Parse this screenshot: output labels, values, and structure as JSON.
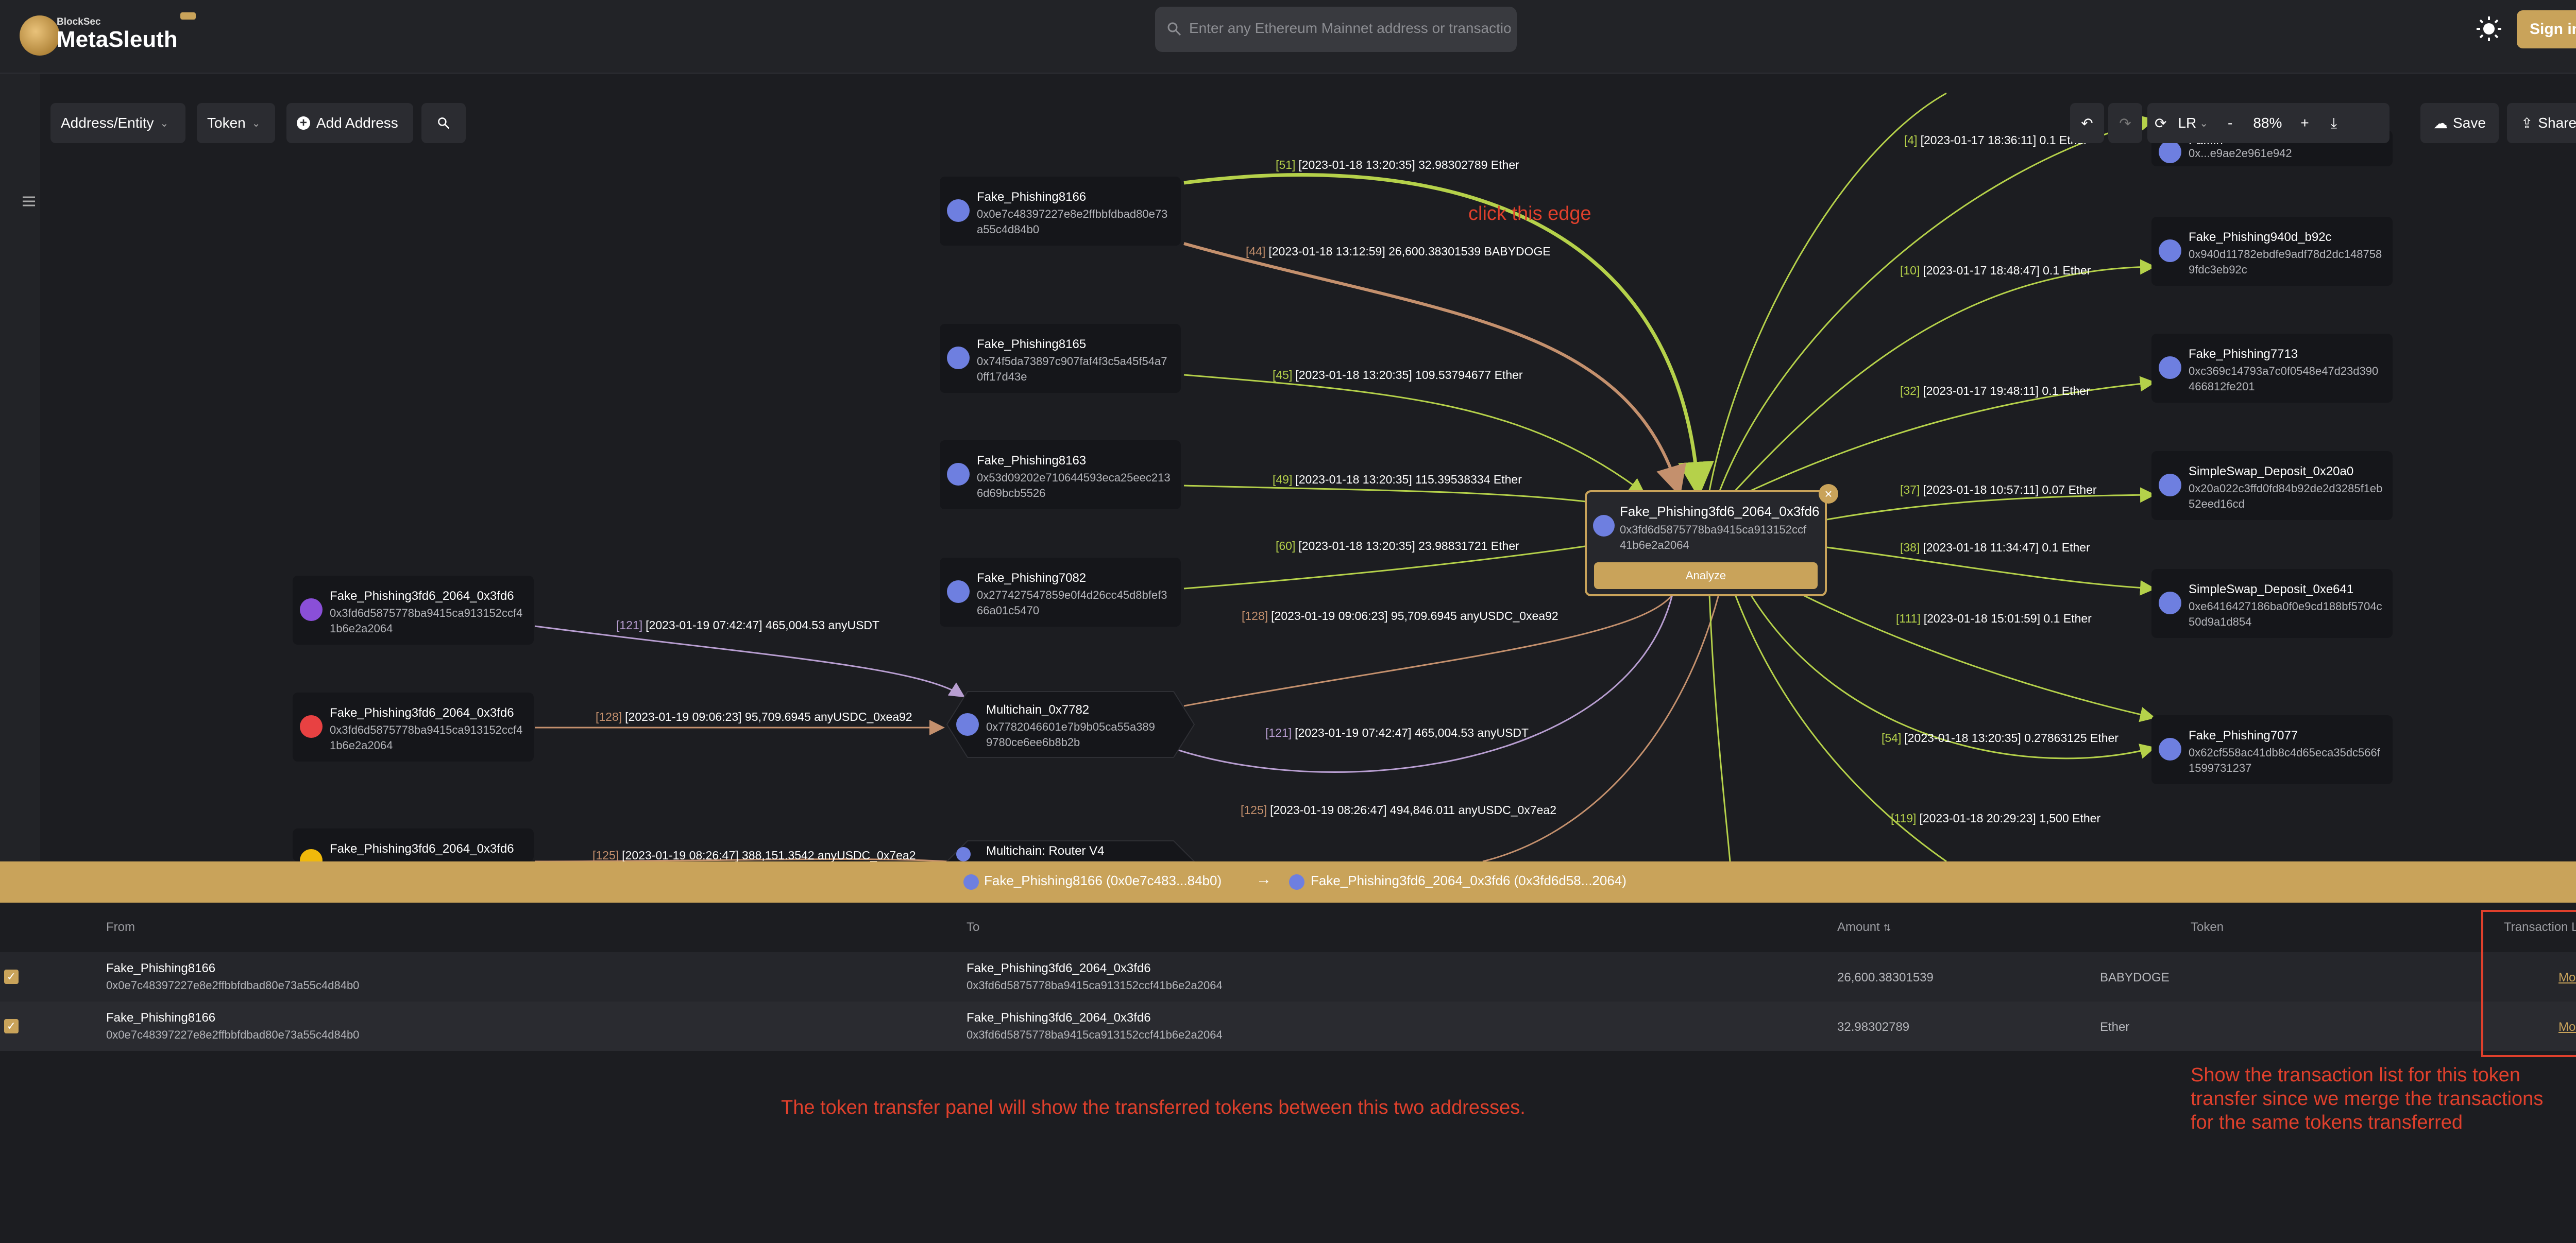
{
  "header": {
    "logo_sub": "BlockSec",
    "logo_main": "MetaSleuth",
    "search_placeholder": "Enter any Ethereum Mainnet address or transaction",
    "signin_label": "Sign in"
  },
  "toolbar": {
    "address_entity": "Address/Entity",
    "token": "Token",
    "add_address": "Add Address",
    "direction": "LR",
    "zoom": "88%",
    "zoom_minus": "-",
    "zoom_plus": "+",
    "save": "Save",
    "share": "Share"
  },
  "nodes": {
    "n8166": {
      "name": "Fake_Phishing8166",
      "address": "0x0e7c48397227e8e2ffbbfdbad80e73a55c4d84b0"
    },
    "n8165": {
      "name": "Fake_Phishing8165",
      "address": "0x74f5da73897c907faf4f3c5a45f54a70ff17d43e"
    },
    "n8163": {
      "name": "Fake_Phishing8163",
      "address": "0x53d09202e710644593eca25eec2136d69bcb5526"
    },
    "n7082": {
      "name": "Fake_Phishing7082",
      "address": "0x277427547859e0f4d26cc45d8bfef366a01c5470"
    },
    "multichain": {
      "name": "Multichain_0x7782",
      "address": "0x7782046601e7b9b05ca55a3899780ce6ee6b8b2b"
    },
    "router": {
      "name": "Multichain: Router V4"
    },
    "left1": {
      "name": "Fake_Phishing3fd6_2064_0x3fd6",
      "address": "0x3fd6d5875778ba9415ca913152ccf41b6e2a2064"
    },
    "left2": {
      "name": "Fake_Phishing3fd6_2064_0x3fd6",
      "address": "0x3fd6d5875778ba9415ca913152ccf41b6e2a2064"
    },
    "left3": {
      "name": "Fake_Phishing3fd6_2064_0x3fd6"
    },
    "center": {
      "name": "Fake_Phishing3fd6_2064_0x3fd6",
      "address": "0x3fd6d5875778ba9415ca913152ccf41b6e2a2064",
      "analyze": "Analyze"
    },
    "top_right": {
      "name": "Fa...in",
      "address": "0x...e9ae2e961e942"
    },
    "n940d": {
      "name": "Fake_Phishing940d_b92c",
      "address": "0x940d11782ebdfe9adf78d2dc1487589fdc3eb92c"
    },
    "n7713": {
      "name": "Fake_Phishing7713",
      "address": "0xc369c14793a7c0f0548e47d23d390466812fe201"
    },
    "swap20a0": {
      "name": "SimpleSwap_Deposit_0x20a0",
      "address": "0x20a022c3ffd0fd84b92de2d3285f1eb52eed16cd"
    },
    "swape641": {
      "name": "SimpleSwap_Deposit_0xe641",
      "address": "0xe6416427186ba0f0e9cd188bf5704c50d9a1d854"
    },
    "n7077": {
      "name": "Fake_Phishing7077",
      "address": "0x62cf558ac41db8c4d65eca35dc566f1599731237"
    }
  },
  "edges": {
    "e51": {
      "idx": "[51]",
      "text": "[2023-01-18 13:20:35] 32.98302789 Ether"
    },
    "e44": {
      "idx": "[44]",
      "text": "[2023-01-18 13:12:59] 26,600.38301539 BABYDOGE"
    },
    "e45": {
      "idx": "[45]",
      "text": "[2023-01-18 13:20:35] 109.53794677 Ether"
    },
    "e49": {
      "idx": "[49]",
      "text": "[2023-01-18 13:20:35] 115.39538334 Ether"
    },
    "e60": {
      "idx": "[60]",
      "text": "[2023-01-18 13:20:35] 23.98831721 Ether"
    },
    "e128a": {
      "idx": "[128]",
      "text": "[2023-01-19 09:06:23] 95,709.6945 anyUSDC_0xea92"
    },
    "e121a": {
      "idx": "[121]",
      "text": "[2023-01-19 07:42:47] 465,004.53 anyUSDT"
    },
    "e128b": {
      "idx": "[128]",
      "text": "[2023-01-19 09:06:23] 95,709.6945 anyUSDC_0xea92"
    },
    "e121b": {
      "idx": "[121]",
      "text": "[2023-01-19 07:42:47] 465,004.53 anyUSDT"
    },
    "e125a": {
      "idx": "[125]",
      "text": "[2023-01-19 08:26:47] 494,846.011 anyUSDC_0x7ea2"
    },
    "e125b": {
      "idx": "[125]",
      "text": "[2023-01-19 08:26:47] 388,151.3542 anyUSDC_0x7ea2"
    },
    "e4": {
      "idx": "[4]",
      "text": "[2023-01-17 18:36:11] 0.1 Ether"
    },
    "e10": {
      "idx": "[10]",
      "text": "[2023-01-17 18:48:47] 0.1 Ether"
    },
    "e32": {
      "idx": "[32]",
      "text": "[2023-01-17 19:48:11] 0.1 Ether"
    },
    "e37": {
      "idx": "[37]",
      "text": "[2023-01-18 10:57:11] 0.07 Ether"
    },
    "e38": {
      "idx": "[38]",
      "text": "[2023-01-18 11:34:47] 0.1 Ether"
    },
    "e111": {
      "idx": "[111]",
      "text": "[2023-01-18 15:01:59] 0.1 Ether"
    },
    "e54": {
      "idx": "[54]",
      "text": "[2023-01-18 13:20:35] 0.27863125 Ether"
    },
    "e119": {
      "idx": "[119]",
      "text": "[2023-01-18 20:29:23] 1,500 Ether"
    }
  },
  "annotation_edge": "click this edge",
  "panel": {
    "from_label": "Fake_Phishing8166  (0x0e7c483...84b0)",
    "arrow": "→",
    "to_label": "Fake_Phishing3fd6_2064_0x3fd6  (0x3fd6d58...2064)",
    "close": "×",
    "columns": {
      "from": "From",
      "to": "To",
      "amount": "Amount",
      "token": "Token",
      "tx_list": "Transaction List"
    },
    "rows": [
      {
        "from_name": "Fake_Phishing8166",
        "from_addr": "0x0e7c48397227e8e2ffbbfdbad80e73a55c4d84b0",
        "to_name": "Fake_Phishing3fd6_2064_0x3fd6",
        "to_addr": "0x3fd6d5875778ba9415ca913152ccf41b6e2a2064",
        "amount": "26,600.38301539",
        "token": "BABYDOGE",
        "more": "More >"
      },
      {
        "from_name": "Fake_Phishing8166",
        "from_addr": "0x0e7c48397227e8e2ffbbfdbad80e73a55c4d84b0",
        "to_name": "Fake_Phishing3fd6_2064_0x3fd6",
        "to_addr": "0x3fd6d5875778ba9415ca913152ccf41b6e2a2064",
        "amount": "32.98302789",
        "token": "Ether",
        "more": "More >"
      }
    ]
  },
  "notes": {
    "panel_note": "The token transfer panel will show the transferred tokens between this two addresses.",
    "tx_note_1": "Show the transaction list for this token",
    "tx_note_2": "transfer since we merge the transactions",
    "tx_note_3": "for the same tokens transferred"
  },
  "colors": {
    "accent": "#c9a35a",
    "edge_green": "#b5d14a",
    "edge_brown": "#c4906d",
    "edge_purple": "#b89ed1",
    "annotation_red": "#e0402c"
  }
}
